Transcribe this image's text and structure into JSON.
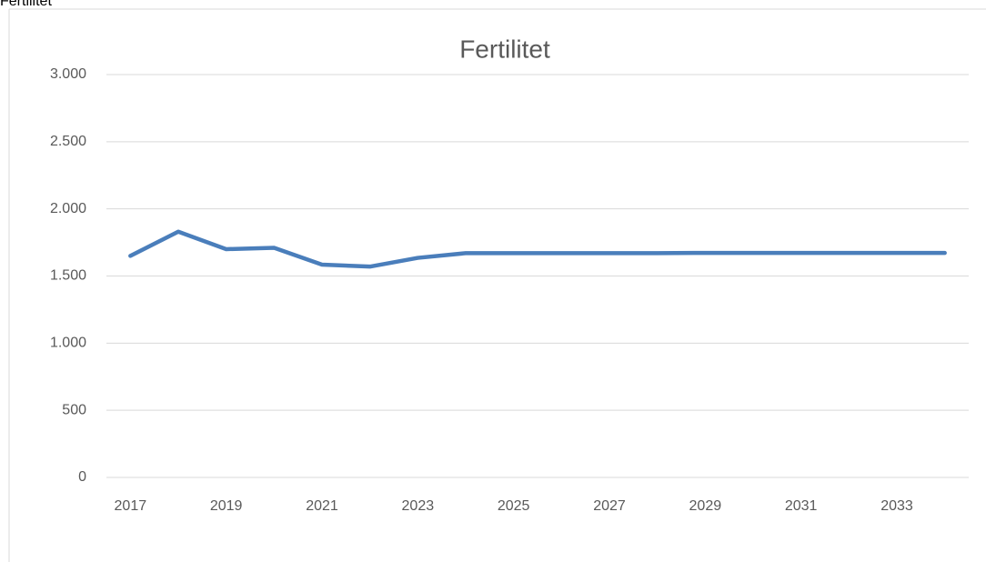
{
  "caption": "Fertilitet",
  "chart_data": {
    "type": "line",
    "title": "Fertilitet",
    "categories": [
      "2017",
      null,
      "2019",
      null,
      "2021",
      null,
      "2023",
      null,
      "2025",
      null,
      "2027",
      null,
      "2029",
      null,
      "2031",
      null,
      "2033",
      null
    ],
    "series": [
      {
        "name": "Fertilitet",
        "color": "#4a7ebb",
        "values": [
          1650,
          1830,
          1700,
          1710,
          1585,
          1570,
          1635,
          1670,
          1670,
          1670,
          1670,
          1670,
          1672,
          1672,
          1672,
          1672,
          1672,
          1672
        ]
      }
    ],
    "ylim": [
      0,
      3000
    ],
    "yticks": [
      0,
      500,
      {
        "value": 1000,
        "label": "1.000"
      },
      {
        "value": 1500,
        "label": "1.500"
      },
      {
        "value": 2000,
        "label": "2.000"
      },
      {
        "value": 2500,
        "label": "2.500"
      },
      {
        "value": 3000,
        "label": "3.000"
      }
    ],
    "grid": true
  }
}
